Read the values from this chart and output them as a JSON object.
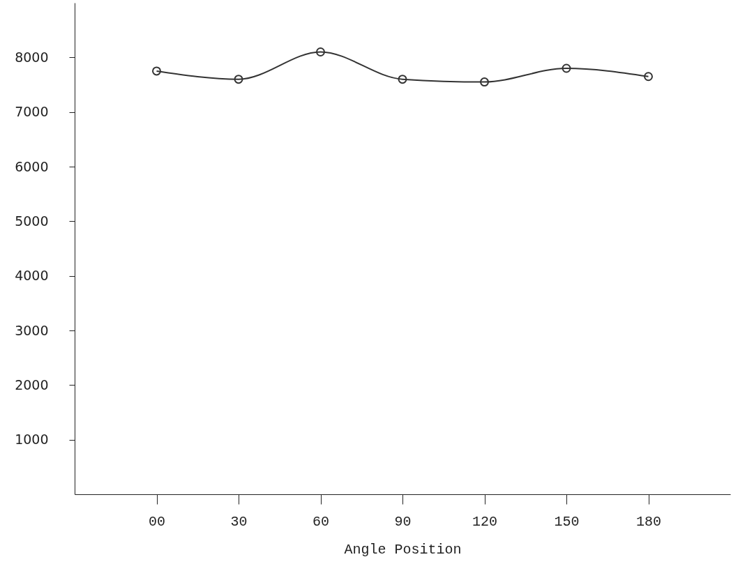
{
  "chart_data": {
    "type": "line",
    "xlabel": "Angle Position",
    "x": [
      0,
      30,
      60,
      90,
      120,
      150,
      180
    ],
    "series": [
      {
        "color": "#333333",
        "values": [
          7750,
          7600,
          8100,
          7600,
          7550,
          7800,
          7650
        ]
      }
    ],
    "xlim": [
      -30,
      210
    ],
    "ylim": [
      0,
      9000
    ],
    "xticks": [
      {
        "value": 0,
        "label": "00"
      },
      30,
      60,
      90,
      120,
      150,
      180
    ],
    "yticks": [
      1000,
      2000,
      3000,
      4000,
      5000,
      6000,
      7000,
      8000
    ],
    "grid": false,
    "marker": "circle",
    "line_style": "solid"
  }
}
